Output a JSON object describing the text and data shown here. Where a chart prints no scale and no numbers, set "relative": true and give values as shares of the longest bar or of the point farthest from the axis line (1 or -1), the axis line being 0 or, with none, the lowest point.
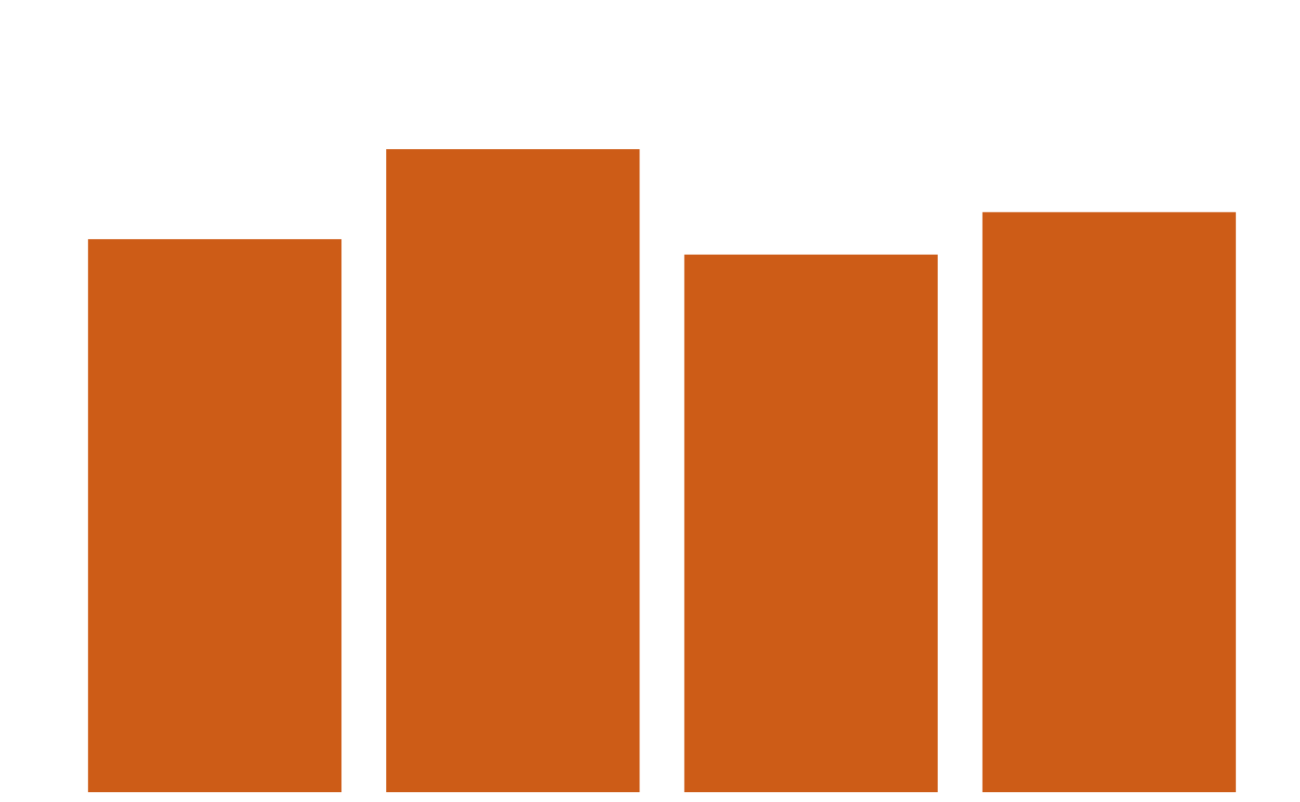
{
  "chart_data": {
    "type": "bar",
    "relative": true,
    "categories": [
      null,
      null,
      null,
      null
    ],
    "values": [
      0.86,
      1,
      0.836,
      0.902
    ],
    "color": "#cd5c17"
  }
}
